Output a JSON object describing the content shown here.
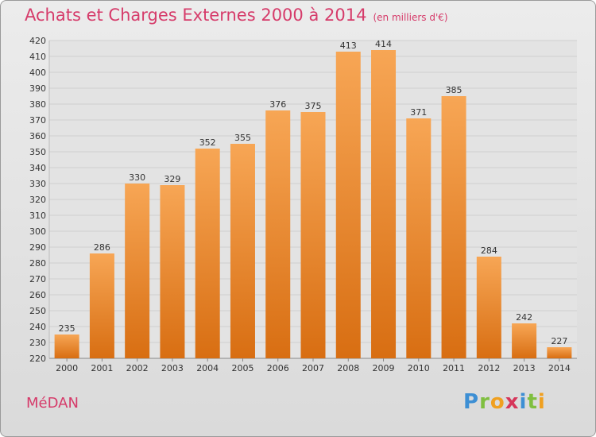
{
  "title": "Achats et Charges Externes 2000 à 2014",
  "unit_note": "(en milliers d'€)",
  "place": "MéDAN",
  "logo": {
    "letters": [
      "P",
      "r",
      "o",
      "x",
      "i",
      "t",
      "i"
    ],
    "colors": [
      "#3d8fd4",
      "#7fbf3f",
      "#f0a020",
      "#d6365a",
      "#3d8fd4",
      "#7fbf3f",
      "#f0a020"
    ]
  },
  "colors": {
    "accent": "#d63b6a",
    "bar_light": "#f7a655",
    "bar_dark": "#d86e12",
    "background": "#e3e3e3",
    "grid": "#cfcfcf"
  },
  "chart_data": {
    "type": "bar",
    "categories": [
      "2000",
      "2001",
      "2002",
      "2003",
      "2004",
      "2005",
      "2006",
      "2007",
      "2008",
      "2009",
      "2010",
      "2011",
      "2012",
      "2013",
      "2014"
    ],
    "values": [
      235,
      286,
      330,
      329,
      352,
      355,
      376,
      375,
      413,
      414,
      371,
      385,
      284,
      242,
      227
    ],
    "yticks": [
      220,
      230,
      240,
      250,
      260,
      270,
      280,
      290,
      300,
      310,
      320,
      330,
      340,
      350,
      360,
      370,
      380,
      390,
      400,
      410,
      420
    ],
    "ylim": [
      220,
      420
    ],
    "grid": true,
    "data_labels": true
  }
}
